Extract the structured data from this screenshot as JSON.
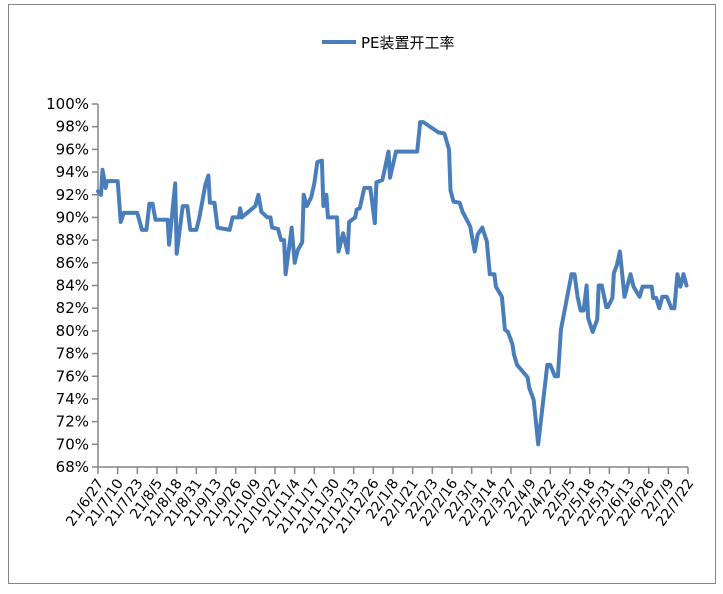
{
  "chart_data": {
    "type": "line",
    "title": "",
    "xlabel": "",
    "ylabel": "",
    "legend": {
      "position": "top",
      "entries": [
        "PE装置开工率"
      ]
    },
    "series_color": "#4A7EBB",
    "ylim": [
      68,
      100
    ],
    "y_ticks": [
      "68%",
      "70%",
      "72%",
      "74%",
      "76%",
      "78%",
      "80%",
      "82%",
      "84%",
      "86%",
      "88%",
      "90%",
      "92%",
      "94%",
      "96%",
      "98%",
      "100%"
    ],
    "y_tick_values": [
      68,
      70,
      72,
      74,
      76,
      78,
      80,
      82,
      84,
      86,
      88,
      90,
      92,
      94,
      96,
      98,
      100
    ],
    "x_unit": "days since 21/6/27",
    "x_tick_step_days": 13,
    "x_ticks": [
      "21/6/27",
      "21/7/10",
      "21/7/23",
      "21/8/5",
      "21/8/18",
      "21/8/31",
      "21/9/13",
      "21/9/26",
      "21/10/9",
      "21/10/22",
      "21/11/4",
      "21/11/17",
      "21/11/30",
      "21/12/13",
      "21/12/26",
      "22/1/8",
      "22/1/21",
      "22/2/3",
      "22/2/16",
      "22/3/1",
      "22/3/14",
      "22/3/27",
      "22/4/9",
      "22/4/22",
      "22/5/5",
      "22/5/18",
      "22/5/31",
      "22/6/13",
      "22/6/26",
      "22/7/9",
      "22/7/22"
    ],
    "series": [
      {
        "name": "PE装置开工率",
        "points": [
          [
            0,
            92.3
          ],
          [
            2,
            92
          ],
          [
            3,
            94.2
          ],
          [
            5,
            92.6
          ],
          [
            6,
            93.2
          ],
          [
            13,
            93.2
          ],
          [
            15,
            89.6
          ],
          [
            17,
            90.4
          ],
          [
            26,
            90.4
          ],
          [
            29,
            88.9
          ],
          [
            32,
            88.9
          ],
          [
            34,
            91.2
          ],
          [
            36,
            91.2
          ],
          [
            38,
            89.8
          ],
          [
            46,
            89.8
          ],
          [
            47,
            87.6
          ],
          [
            51,
            93
          ],
          [
            52,
            86.8
          ],
          [
            56,
            91
          ],
          [
            59,
            91
          ],
          [
            61,
            88.9
          ],
          [
            65,
            88.9
          ],
          [
            67,
            90
          ],
          [
            71,
            92.9
          ],
          [
            73,
            93.7
          ],
          [
            74,
            91.3
          ],
          [
            77,
            91.3
          ],
          [
            79,
            89.1
          ],
          [
            87,
            88.9
          ],
          [
            89,
            90
          ],
          [
            93,
            90
          ],
          [
            94,
            90.8
          ],
          [
            95,
            90
          ],
          [
            104,
            91
          ],
          [
            106,
            92
          ],
          [
            108,
            90.5
          ],
          [
            112,
            90
          ],
          [
            114,
            90
          ],
          [
            115,
            89.1
          ],
          [
            119,
            89
          ],
          [
            121,
            88
          ],
          [
            123,
            88
          ],
          [
            124,
            85
          ],
          [
            127,
            88
          ],
          [
            128,
            89.1
          ],
          [
            130,
            86
          ],
          [
            132,
            87.1
          ],
          [
            135,
            87.8
          ],
          [
            136,
            92
          ],
          [
            138,
            91
          ],
          [
            141,
            91.8
          ],
          [
            143,
            93
          ],
          [
            145,
            94.9
          ],
          [
            148,
            95
          ],
          [
            149,
            91
          ],
          [
            151,
            92
          ],
          [
            152,
            90
          ],
          [
            158,
            90
          ],
          [
            159,
            87
          ],
          [
            162,
            88.6
          ],
          [
            165,
            86.9
          ],
          [
            166,
            89.6
          ],
          [
            170,
            90
          ],
          [
            171,
            90.7
          ],
          [
            173,
            90.8
          ],
          [
            176,
            92.6
          ],
          [
            180,
            92.6
          ],
          [
            183,
            89.5
          ],
          [
            184,
            93.1
          ],
          [
            188,
            93.3
          ],
          [
            192,
            95.8
          ],
          [
            193,
            93.5
          ],
          [
            197,
            95.8
          ],
          [
            211,
            95.8
          ],
          [
            213,
            98.4
          ],
          [
            215,
            98.4
          ],
          [
            225,
            97.5
          ],
          [
            229,
            97.4
          ],
          [
            232,
            96
          ],
          [
            233,
            92.4
          ],
          [
            235,
            91.4
          ],
          [
            239,
            91.3
          ],
          [
            241,
            90.5
          ],
          [
            246,
            89.2
          ],
          [
            249,
            87
          ],
          [
            251,
            88.5
          ],
          [
            254,
            89.1
          ],
          [
            257,
            87.9
          ],
          [
            259,
            85
          ],
          [
            262,
            85
          ],
          [
            263,
            83.9
          ],
          [
            267,
            83
          ],
          [
            269,
            80.1
          ],
          [
            271,
            79.9
          ],
          [
            274,
            78.8
          ],
          [
            275,
            77.9
          ],
          [
            277,
            77
          ],
          [
            284,
            75.9
          ],
          [
            285,
            75
          ],
          [
            288,
            73.9
          ],
          [
            291,
            70
          ],
          [
            297,
            77
          ],
          [
            299,
            77
          ],
          [
            302,
            76
          ],
          [
            304,
            76
          ],
          [
            306,
            80.1
          ],
          [
            313,
            85
          ],
          [
            315,
            85
          ],
          [
            317,
            83
          ],
          [
            319,
            81.8
          ],
          [
            321,
            81.8
          ],
          [
            323,
            84
          ],
          [
            324,
            81.1
          ],
          [
            327,
            79.9
          ],
          [
            330,
            81
          ],
          [
            331,
            84
          ],
          [
            333,
            84
          ],
          [
            336,
            82.1
          ],
          [
            337,
            82.1
          ],
          [
            340,
            82.9
          ],
          [
            341,
            85.1
          ],
          [
            343,
            85.8
          ],
          [
            345,
            87
          ],
          [
            348,
            83
          ],
          [
            352,
            85
          ],
          [
            354,
            83.9
          ],
          [
            358,
            83
          ],
          [
            360,
            83.9
          ],
          [
            366,
            83.9
          ],
          [
            367,
            82.9
          ],
          [
            369,
            82.9
          ],
          [
            371,
            82
          ],
          [
            373,
            83
          ],
          [
            376,
            83
          ],
          [
            379,
            82
          ],
          [
            381,
            82
          ],
          [
            383,
            85
          ],
          [
            385,
            83.9
          ],
          [
            387,
            85
          ],
          [
            389,
            84
          ]
        ]
      }
    ]
  }
}
